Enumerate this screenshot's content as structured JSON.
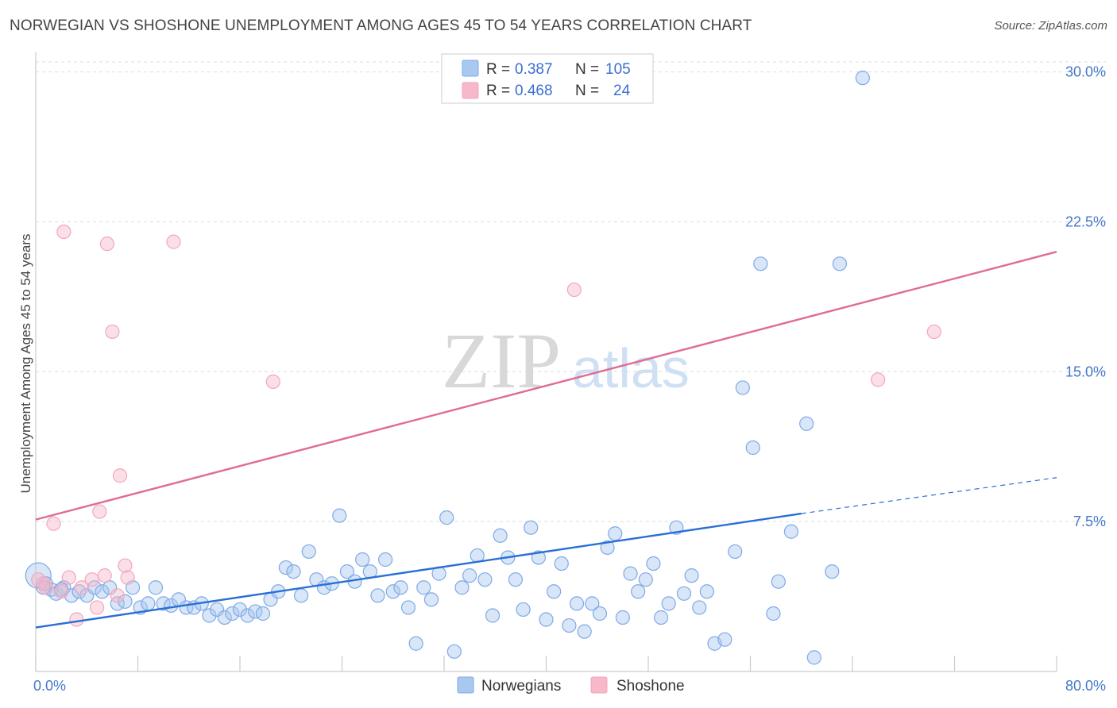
{
  "title": "NORWEGIAN VS SHOSHONE UNEMPLOYMENT AMONG AGES 45 TO 54 YEARS CORRELATION CHART",
  "source": "Source: ZipAtlas.com",
  "watermark": {
    "zip": "ZIP",
    "atlas": "atlas"
  },
  "legend": {
    "rows": [
      {
        "r_label": "R =",
        "r_value": "0.387",
        "n_label": "N =",
        "n_value": "105",
        "color": "#a9c8f0"
      },
      {
        "r_label": "R =",
        "r_value": "0.468",
        "n_label": "N =",
        "n_value": "24",
        "color": "#f7b8c9"
      }
    ]
  },
  "bottom_legend": [
    {
      "label": "Norwegians",
      "color": "#a9c8f0"
    },
    {
      "label": "Shoshone",
      "color": "#f7b8c9"
    }
  ],
  "chart_data": {
    "type": "scatter",
    "title": "NORWEGIAN VS SHOSHONE UNEMPLOYMENT AMONG AGES 45 TO 54 YEARS CORRELATION CHART",
    "xlabel": "",
    "ylabel": "Unemployment Among Ages 45 to 54 years",
    "xlim": [
      0,
      80
    ],
    "ylim": [
      0,
      30.5
    ],
    "x_ticks_labels": [
      "0.0%",
      "80.0%"
    ],
    "y_ticks": [
      7.5,
      15.0,
      22.5,
      30.0
    ],
    "y_ticks_labels": [
      "7.5%",
      "15.0%",
      "22.5%",
      "30.0%"
    ],
    "grid": true,
    "legend_position": "top-center",
    "series": [
      {
        "name": "Norwegians",
        "color": "#7eaae6",
        "trend": {
          "x0": 0,
          "y0": 2.2,
          "x1": 60,
          "y1": 7.9,
          "dashed_to_x": 80,
          "dashed_to_y": 9.7,
          "color": "#2a6fd6"
        },
        "points": [
          [
            0.2,
            4.8
          ],
          [
            0.8,
            4.4
          ],
          [
            1.2,
            4.1
          ],
          [
            1.6,
            3.9
          ],
          [
            2.2,
            4.2
          ],
          [
            2.8,
            3.8
          ],
          [
            3.4,
            4.0
          ],
          [
            4.0,
            3.8
          ],
          [
            4.6,
            4.2
          ],
          [
            5.2,
            4.0
          ],
          [
            5.8,
            4.2
          ],
          [
            6.4,
            3.4
          ],
          [
            7.0,
            3.5
          ],
          [
            7.6,
            4.2
          ],
          [
            8.2,
            3.2
          ],
          [
            8.8,
            3.4
          ],
          [
            9.4,
            4.2
          ],
          [
            10.0,
            3.4
          ],
          [
            10.6,
            3.3
          ],
          [
            11.2,
            3.6
          ],
          [
            11.8,
            3.2
          ],
          [
            12.4,
            3.2
          ],
          [
            13.0,
            3.4
          ],
          [
            13.6,
            2.8
          ],
          [
            14.2,
            3.1
          ],
          [
            14.8,
            2.7
          ],
          [
            15.4,
            2.9
          ],
          [
            16.0,
            3.1
          ],
          [
            16.6,
            2.8
          ],
          [
            17.2,
            3.0
          ],
          [
            17.8,
            2.9
          ],
          [
            18.4,
            3.6
          ],
          [
            19.0,
            4.0
          ],
          [
            19.6,
            5.2
          ],
          [
            20.2,
            5.0
          ],
          [
            20.8,
            3.8
          ],
          [
            21.4,
            6.0
          ],
          [
            22.0,
            4.6
          ],
          [
            22.6,
            4.2
          ],
          [
            23.2,
            4.4
          ],
          [
            23.8,
            7.8
          ],
          [
            24.4,
            5.0
          ],
          [
            25.0,
            4.5
          ],
          [
            25.6,
            5.6
          ],
          [
            26.2,
            5.0
          ],
          [
            26.8,
            3.8
          ],
          [
            27.4,
            5.6
          ],
          [
            28.0,
            4.0
          ],
          [
            28.6,
            4.2
          ],
          [
            29.2,
            3.2
          ],
          [
            29.8,
            1.4
          ],
          [
            30.4,
            4.2
          ],
          [
            31.0,
            3.6
          ],
          [
            31.6,
            4.9
          ],
          [
            32.2,
            7.7
          ],
          [
            32.8,
            1.0
          ],
          [
            33.4,
            4.2
          ],
          [
            34.0,
            4.8
          ],
          [
            34.6,
            5.8
          ],
          [
            35.2,
            4.6
          ],
          [
            35.8,
            2.8
          ],
          [
            36.4,
            6.8
          ],
          [
            37.0,
            5.7
          ],
          [
            37.6,
            4.6
          ],
          [
            38.2,
            3.1
          ],
          [
            38.8,
            7.2
          ],
          [
            39.4,
            5.7
          ],
          [
            40.0,
            2.6
          ],
          [
            40.6,
            4.0
          ],
          [
            41.2,
            5.4
          ],
          [
            41.8,
            2.3
          ],
          [
            42.4,
            3.4
          ],
          [
            43.0,
            2.0
          ],
          [
            43.6,
            3.4
          ],
          [
            44.2,
            2.9
          ],
          [
            44.8,
            6.2
          ],
          [
            45.4,
            6.9
          ],
          [
            46.0,
            2.7
          ],
          [
            46.6,
            4.9
          ],
          [
            47.2,
            4.0
          ],
          [
            47.8,
            4.6
          ],
          [
            48.4,
            5.4
          ],
          [
            49.0,
            2.7
          ],
          [
            49.6,
            3.4
          ],
          [
            50.2,
            7.2
          ],
          [
            50.8,
            3.9
          ],
          [
            51.4,
            4.8
          ],
          [
            52.0,
            3.2
          ],
          [
            52.6,
            4.0
          ],
          [
            53.2,
            1.4
          ],
          [
            54.0,
            1.6
          ],
          [
            54.8,
            6.0
          ],
          [
            55.4,
            14.2
          ],
          [
            56.2,
            11.2
          ],
          [
            56.8,
            20.4
          ],
          [
            57.8,
            2.9
          ],
          [
            58.2,
            4.5
          ],
          [
            59.2,
            7.0
          ],
          [
            60.4,
            12.4
          ],
          [
            61.0,
            0.7
          ],
          [
            62.4,
            5.0
          ],
          [
            63.0,
            20.4
          ],
          [
            64.8,
            29.7
          ],
          [
            0.6,
            4.2
          ],
          [
            2.0,
            4.1
          ]
        ]
      },
      {
        "name": "Shoshone",
        "color": "#f3a6bd",
        "trend": {
          "x0": 0,
          "y0": 7.6,
          "x1": 80,
          "y1": 21.0,
          "color": "#e06b94"
        },
        "points": [
          [
            0.2,
            4.6
          ],
          [
            0.8,
            4.2
          ],
          [
            1.4,
            7.4
          ],
          [
            2.0,
            4.0
          ],
          [
            2.6,
            4.7
          ],
          [
            2.2,
            22.0
          ],
          [
            3.2,
            2.6
          ],
          [
            3.6,
            4.2
          ],
          [
            4.4,
            4.6
          ],
          [
            4.8,
            3.2
          ],
          [
            5.0,
            8.0
          ],
          [
            5.4,
            4.8
          ],
          [
            5.6,
            21.4
          ],
          [
            6.0,
            17.0
          ],
          [
            6.4,
            3.8
          ],
          [
            6.6,
            9.8
          ],
          [
            7.0,
            5.3
          ],
          [
            7.2,
            4.7
          ],
          [
            10.8,
            21.5
          ],
          [
            18.6,
            14.5
          ],
          [
            42.2,
            19.1
          ],
          [
            66.0,
            14.6
          ],
          [
            70.4,
            17.0
          ],
          [
            0.6,
            4.4
          ]
        ]
      }
    ]
  }
}
